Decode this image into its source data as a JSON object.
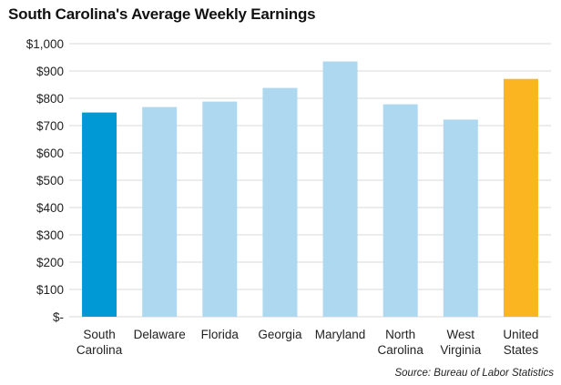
{
  "title": "South Carolina's Average Weekly Earnings",
  "source": "Source: Bureau of Labor Statistics",
  "colors": {
    "highlight": "#0099d6",
    "default": "#aed8f0",
    "benchmark": "#fbb521",
    "grid": "#d9d9d9"
  },
  "chart_data": {
    "type": "bar",
    "title": "South Carolina's Average Weekly Earnings",
    "xlabel": "",
    "ylabel": "",
    "ylim": [
      0,
      1000
    ],
    "yticks": [
      0,
      100,
      200,
      300,
      400,
      500,
      600,
      700,
      800,
      900,
      1000
    ],
    "ytick_labels": [
      "$-",
      "$100",
      "$200",
      "$300",
      "$400",
      "$500",
      "$600",
      "$700",
      "$800",
      "$900",
      "$1,000"
    ],
    "grid": true,
    "categories": [
      [
        "South",
        "Carolina"
      ],
      [
        "Delaware"
      ],
      [
        "Florida"
      ],
      [
        "Georgia"
      ],
      [
        "Maryland"
      ],
      [
        "North",
        "Carolina"
      ],
      [
        "West",
        "Virginia"
      ],
      [
        "United",
        "States"
      ]
    ],
    "values": [
      748,
      768,
      788,
      838,
      935,
      778,
      722,
      871
    ],
    "bar_colors": [
      "highlight",
      "default",
      "default",
      "default",
      "default",
      "default",
      "default",
      "benchmark"
    ]
  }
}
